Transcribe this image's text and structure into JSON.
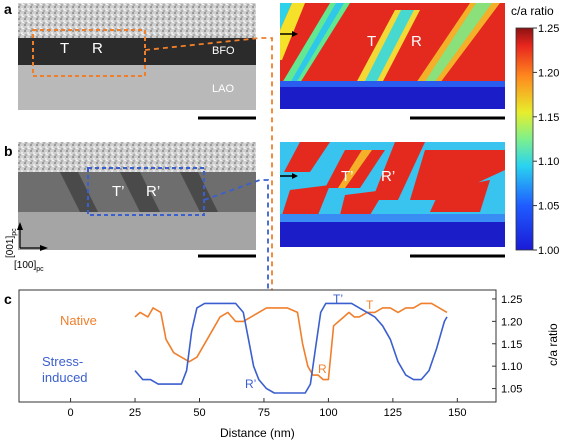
{
  "panels": {
    "a": "a",
    "b": "b",
    "c": "c"
  },
  "panel_a": {
    "label_T": "T",
    "label_R": "R",
    "label_BFO": "BFO",
    "label_LAO": "LAO",
    "map_label_T": "T",
    "map_label_R": "R"
  },
  "panel_b": {
    "label_T": "T’",
    "label_R": "R’",
    "map_label_T": "T’",
    "map_label_R": "R’",
    "axis_v_main": "[001]",
    "axis_v_sub": "pc",
    "axis_h_main": "[100]",
    "axis_h_sub": "pc"
  },
  "colorbar": {
    "title": "c/a ratio",
    "ticks": [
      "1.25",
      "1.20",
      "1.15",
      "1.10",
      "1.05",
      "1.00"
    ]
  },
  "colors": {
    "native": "#f07f2c",
    "stress": "#3b5fcf",
    "dashed_orange": "#f07f2c",
    "dashed_blue": "#3b5fcf"
  },
  "chart_data": {
    "type": "line",
    "xlabel": "Distance (nm)",
    "ylabel": "c/a ratio",
    "xlim": [
      -20,
      165
    ],
    "ylim": [
      1.02,
      1.27
    ],
    "xticks": [
      "0",
      "25",
      "50",
      "75",
      "100",
      "125",
      "150"
    ],
    "yticks": [
      "1.25",
      "1.20",
      "1.15",
      "1.10",
      "1.05"
    ],
    "series": [
      {
        "name": "Native",
        "annotations": [
          "T",
          "R"
        ],
        "x": [
          25,
          27,
          30,
          32,
          35,
          37,
          40,
          43,
          46,
          49,
          52,
          55,
          58,
          61,
          64,
          67,
          70,
          73,
          76,
          80,
          84,
          88,
          90,
          92,
          94,
          96,
          98,
          100,
          102,
          104,
          106,
          108,
          110,
          112,
          115,
          118,
          121,
          124,
          127,
          130,
          133,
          136,
          140,
          143,
          146
        ],
        "y": [
          1.21,
          1.22,
          1.21,
          1.23,
          1.22,
          1.16,
          1.13,
          1.12,
          1.11,
          1.12,
          1.15,
          1.18,
          1.21,
          1.22,
          1.2,
          1.2,
          1.21,
          1.22,
          1.23,
          1.23,
          1.23,
          1.22,
          1.15,
          1.1,
          1.08,
          1.08,
          1.07,
          1.07,
          1.19,
          1.2,
          1.21,
          1.22,
          1.21,
          1.21,
          1.22,
          1.22,
          1.23,
          1.23,
          1.22,
          1.23,
          1.23,
          1.24,
          1.24,
          1.23,
          1.22
        ]
      },
      {
        "name": "Stress-induced",
        "annotations": [
          "T’",
          "R’"
        ],
        "x": [
          25,
          28,
          31,
          34,
          37,
          40,
          43,
          45,
          47,
          49,
          52,
          55,
          58,
          61,
          64,
          67,
          69,
          71,
          73,
          76,
          79,
          82,
          85,
          88,
          91,
          93,
          95,
          97,
          99,
          101,
          103,
          106,
          109,
          112,
          115,
          118,
          121,
          124,
          127,
          130,
          133,
          136,
          139,
          142,
          145,
          146
        ],
        "y": [
          1.09,
          1.07,
          1.07,
          1.06,
          1.06,
          1.06,
          1.06,
          1.09,
          1.18,
          1.23,
          1.24,
          1.24,
          1.24,
          1.24,
          1.24,
          1.22,
          1.16,
          1.1,
          1.07,
          1.05,
          1.04,
          1.04,
          1.04,
          1.04,
          1.04,
          1.06,
          1.14,
          1.22,
          1.24,
          1.24,
          1.24,
          1.24,
          1.24,
          1.23,
          1.22,
          1.21,
          1.19,
          1.16,
          1.11,
          1.08,
          1.07,
          1.07,
          1.09,
          1.14,
          1.2,
          1.21
        ]
      }
    ]
  }
}
